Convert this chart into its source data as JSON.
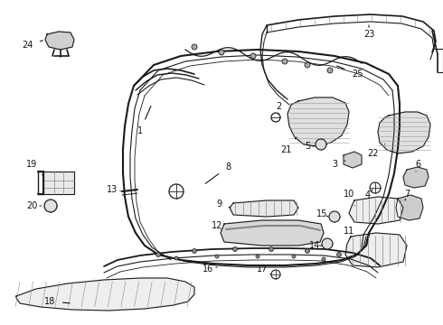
{
  "background_color": "#ffffff",
  "line_color": "#1a1a1a",
  "figure_width": 4.9,
  "figure_height": 3.6,
  "dpi": 100
}
